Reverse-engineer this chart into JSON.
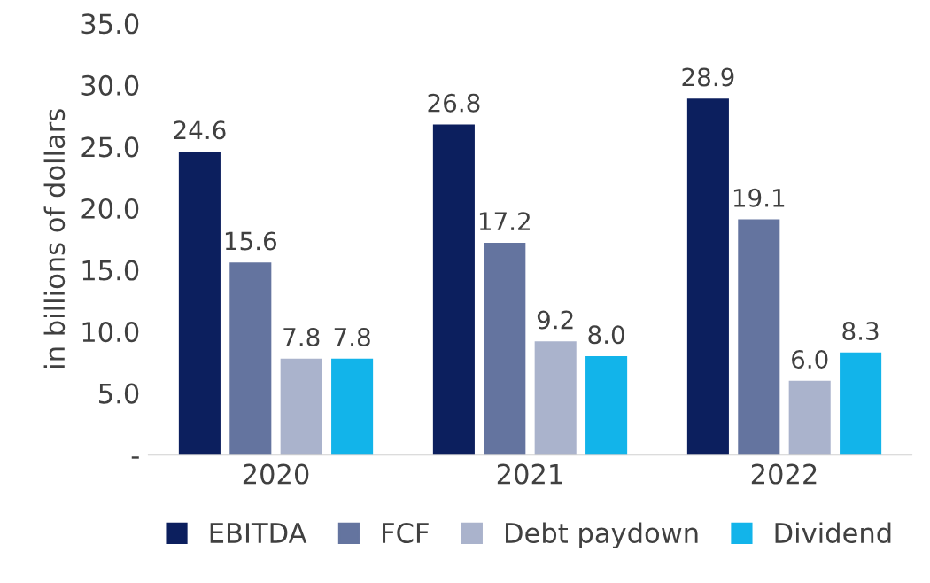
{
  "chart_data": {
    "type": "bar",
    "ylabel": "in billions of dollars",
    "categories": [
      "2020",
      "2021",
      "2022"
    ],
    "series": [
      {
        "name": "EBITDA",
        "color": "#0c1f5e",
        "values": [
          24.6,
          26.8,
          28.9
        ],
        "value_labels": [
          "24.6",
          "26.8",
          "28.9"
        ]
      },
      {
        "name": "FCF",
        "color": "#64749f",
        "values": [
          15.6,
          17.2,
          19.1
        ],
        "value_labels": [
          "15.6",
          "17.2",
          "19.1"
        ]
      },
      {
        "name": "Debt paydown",
        "color": "#aab3cc",
        "values": [
          7.8,
          9.2,
          6.0
        ],
        "value_labels": [
          "7.8",
          "9.2",
          "6.0"
        ]
      },
      {
        "name": "Dividend",
        "color": "#12b4ea",
        "values": [
          7.8,
          8.0,
          8.3
        ],
        "value_labels": [
          "7.8",
          "8.0",
          "8.3"
        ]
      }
    ],
    "ylim": [
      0,
      35
    ],
    "yticks": [
      {
        "value": 0,
        "label": "-"
      },
      {
        "value": 5,
        "label": "5.0"
      },
      {
        "value": 10,
        "label": "10.0"
      },
      {
        "value": 15,
        "label": "15.0"
      },
      {
        "value": 20,
        "label": "20.0"
      },
      {
        "value": 25,
        "label": "25.0"
      },
      {
        "value": 30,
        "label": "30.0"
      },
      {
        "value": 35,
        "label": "35.0"
      }
    ],
    "grid": false,
    "legend": "bottom"
  }
}
